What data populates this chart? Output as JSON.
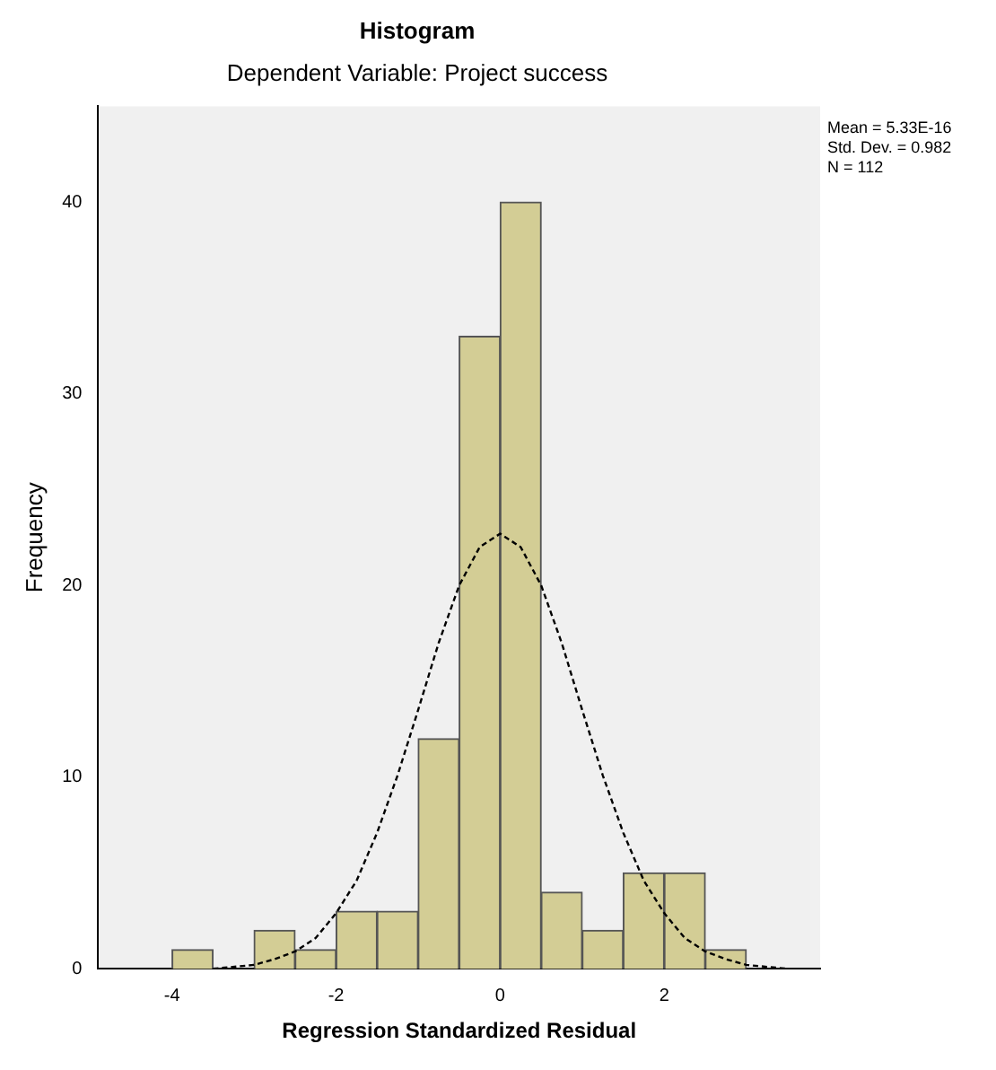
{
  "chart_data": {
    "type": "histogram",
    "title": "Histogram",
    "subtitle": "Dependent Variable: Project success",
    "xlabel": "Regression Standardized Residual",
    "ylabel": "Frequency",
    "bins": [
      -4,
      -3.5,
      -3,
      -2.5,
      -2,
      -1.5,
      -1,
      -0.5,
      0,
      0.5,
      1,
      1.5,
      2,
      2.5,
      3
    ],
    "values": [
      1,
      0,
      2,
      1,
      3,
      3,
      12,
      33,
      40,
      4,
      2,
      5,
      5,
      1
    ],
    "color": "#d3cd95",
    "series": [
      {
        "type": "line",
        "color": "#000000",
        "line_style": "dashed",
        "x": [
          -3.5,
          -3,
          -2.75,
          -2.5,
          -2.25,
          -2,
          -1.75,
          -1.5,
          -1.25,
          -1,
          -0.75,
          -0.5,
          -0.25,
          0,
          0.25,
          0.5,
          0.75,
          1,
          1.25,
          1.5,
          1.75,
          2,
          2.25,
          2.5,
          2.75,
          3,
          3.5
        ],
        "values": [
          0,
          0.2,
          0.5,
          0.9,
          1.6,
          2.9,
          4.6,
          7.1,
          10.1,
          13.5,
          17,
          20,
          22,
          22.7,
          22,
          20,
          17,
          13.5,
          10.1,
          7.1,
          4.6,
          2.9,
          1.6,
          0.9,
          0.5,
          0.2,
          0
        ]
      }
    ],
    "xlim": [
      -4.9,
      3.9
    ],
    "xticks": [
      -4,
      -2,
      0,
      2
    ],
    "ylim": [
      0,
      45
    ],
    "yticks": [
      0,
      10,
      20,
      30,
      40
    ],
    "grid": false,
    "legend": false,
    "annotations": [
      "Mean = 5.33E-16",
      "Std. Dev. = 0.982",
      "N = 112"
    ]
  }
}
